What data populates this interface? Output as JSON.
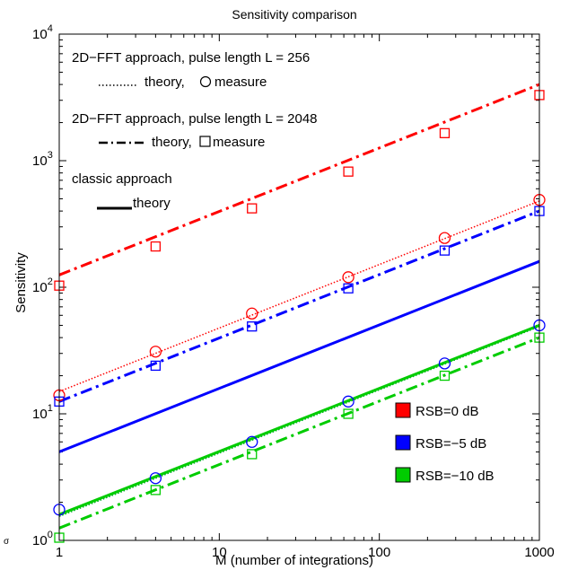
{
  "chart_data": {
    "type": "line",
    "title": "Sensitivity comparison",
    "xlabel": "M (number of integrations)",
    "ylabel": "Sensitivity",
    "x_scale": "log",
    "y_scale": "log",
    "xlim": [
      1,
      1000
    ],
    "ylim": [
      1,
      10000
    ],
    "grid": false,
    "x_ticks": [
      {
        "value": 1,
        "label": "1"
      },
      {
        "value": 10,
        "label": "10"
      },
      {
        "value": 100,
        "label": "100"
      },
      {
        "value": 1000,
        "label": "1000"
      }
    ],
    "y_ticks": [
      {
        "value": 1,
        "base": "10",
        "exp": "0"
      },
      {
        "value": 10,
        "base": "10",
        "exp": "1"
      },
      {
        "value": 100,
        "base": "10",
        "exp": "2"
      },
      {
        "value": 1000,
        "base": "10",
        "exp": "3"
      },
      {
        "value": 10000,
        "base": "10",
        "exp": "4"
      }
    ],
    "annotations": {
      "l256_title": "2D−FFT approach, pulse length  L = 256",
      "l256_theory": "theory,",
      "l256_measure": "measure",
      "l2048_title": "2D−FFT approach, pulse length L = 2048",
      "l2048_theory": "theory,",
      "l2048_measure": "measure",
      "classic_title": "classic approach",
      "classic_theory": "theory",
      "corner_mark": "σ"
    },
    "legend": {
      "position": "bottom-right",
      "entries": [
        {
          "label": "RSB=0 dB",
          "color": "#ff0000"
        },
        {
          "label": "RSB=−5 dB",
          "color": "#0000ff"
        },
        {
          "label": "RSB=−10 dB",
          "color": "#00cc00"
        }
      ]
    },
    "theory_lines": [
      {
        "method": "L=256",
        "rsb": "0 dB",
        "color": "#ff0000",
        "style": "dotted",
        "x": [
          1,
          1000
        ],
        "y": [
          15,
          480
        ]
      },
      {
        "method": "L=256",
        "rsb": "-5 dB",
        "color": "#0000ff",
        "style": "dotted",
        "x": [
          1,
          1000
        ],
        "y": [
          1.55,
          49
        ]
      },
      {
        "method": "L=256",
        "rsb": "-10 dB",
        "color": "#00cc00",
        "style": "dotted",
        "x": [
          1,
          1000
        ],
        "y": [
          1.55,
          49
        ]
      },
      {
        "method": "L=2048",
        "rsb": "0 dB",
        "color": "#ff0000",
        "style": "dashdot",
        "x": [
          1,
          1000
        ],
        "y": [
          125,
          4000
        ]
      },
      {
        "method": "L=2048",
        "rsb": "-5 dB",
        "color": "#0000ff",
        "style": "dashdot",
        "x": [
          1,
          1000
        ],
        "y": [
          12.5,
          400
        ]
      },
      {
        "method": "L=2048",
        "rsb": "-10 dB",
        "color": "#00cc00",
        "style": "dashdot",
        "x": [
          1,
          1000
        ],
        "y": [
          1.25,
          40
        ]
      },
      {
        "method": "classic",
        "rsb": "0 dB",
        "color": "#0000ff",
        "style": "solid",
        "x": [
          1,
          1000
        ],
        "y": [
          5,
          160
        ]
      },
      {
        "method": "classic",
        "rsb": "-5 dB",
        "color": "#00cc00",
        "style": "solid",
        "x": [
          1,
          1000
        ],
        "y": [
          1.6,
          50
        ]
      }
    ],
    "measurements": [
      {
        "method": "L=256",
        "rsb": "0 dB",
        "marker": "circle",
        "color": "#ff0000",
        "x": [
          1,
          4,
          16,
          64,
          256,
          1000
        ],
        "y": [
          14,
          31,
          62,
          120,
          245,
          490
        ]
      },
      {
        "method": "L=256",
        "rsb": "-5 dB",
        "marker": "circle",
        "color": "#0000ff",
        "x": [
          1,
          4,
          16,
          64,
          256,
          1000
        ],
        "y": [
          1.75,
          3.1,
          6,
          12.5,
          25,
          50
        ]
      },
      {
        "method": "L=2048",
        "rsb": "0 dB",
        "marker": "square",
        "color": "#ff0000",
        "x": [
          1,
          4,
          16,
          64,
          256,
          1000
        ],
        "y": [
          103,
          210,
          420,
          820,
          1650,
          3300
        ]
      },
      {
        "method": "L=2048",
        "rsb": "-5 dB",
        "marker": "square",
        "color": "#0000ff",
        "x": [
          1,
          4,
          16,
          64,
          256,
          1000
        ],
        "y": [
          12.5,
          24,
          49,
          98,
          195,
          400
        ]
      },
      {
        "method": "L=2048",
        "rsb": "-10 dB",
        "marker": "square",
        "color": "#00cc00",
        "x": [
          1,
          4,
          16,
          64,
          256,
          1000
        ],
        "y": [
          1.05,
          2.5,
          4.8,
          10,
          20,
          40
        ]
      }
    ]
  }
}
